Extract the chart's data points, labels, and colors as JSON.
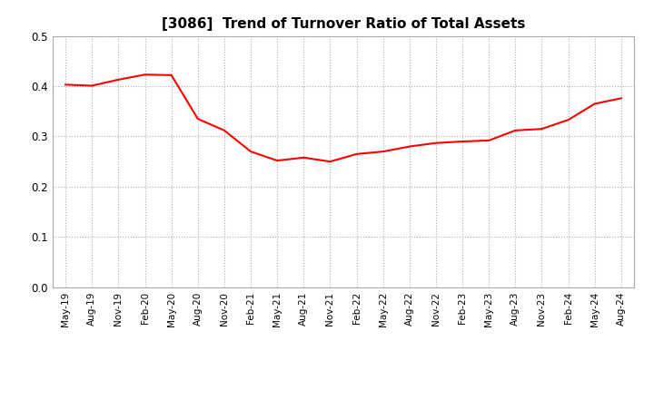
{
  "title": "[3086]  Trend of Turnover Ratio of Total Assets",
  "line_color": "#FF0000",
  "background_color": "#FFFFFF",
  "grid_color": "#AAAAAA",
  "ylim": [
    0.0,
    0.5
  ],
  "yticks": [
    0.0,
    0.1,
    0.2,
    0.3,
    0.4,
    0.5
  ],
  "x_labels": [
    "May-19",
    "Aug-19",
    "Nov-19",
    "Feb-20",
    "May-20",
    "Aug-20",
    "Nov-20",
    "Feb-21",
    "May-21",
    "Aug-21",
    "Nov-21",
    "Feb-22",
    "May-22",
    "Aug-22",
    "Nov-22",
    "Feb-23",
    "May-23",
    "Aug-23",
    "Nov-23",
    "Feb-24",
    "May-24",
    "Aug-24"
  ],
  "y_values": [
    0.403,
    0.401,
    0.413,
    0.423,
    0.422,
    0.335,
    0.312,
    0.27,
    0.252,
    0.258,
    0.25,
    0.265,
    0.27,
    0.28,
    0.287,
    0.29,
    0.292,
    0.312,
    0.315,
    0.333,
    0.365,
    0.376
  ]
}
